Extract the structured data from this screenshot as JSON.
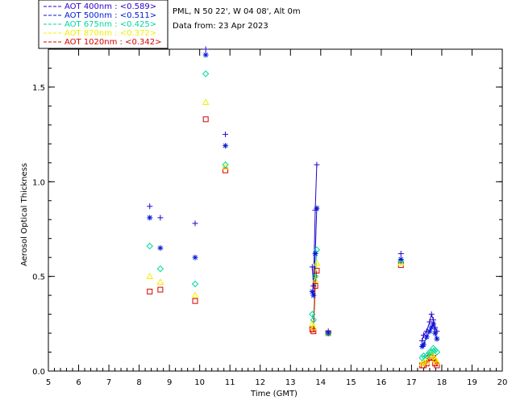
{
  "header": {
    "site": "PML, N 50 22', W 04 08', Alt 0m",
    "date_line": "Data from: 23 Apr 2023"
  },
  "chart_data": {
    "type": "scatter",
    "xlabel": "Time (GMT)",
    "ylabel": "Aerosol Optical Thickness",
    "xlim": [
      5,
      20
    ],
    "ylim": [
      0.0,
      1.7
    ],
    "xticks": [
      "5",
      "6",
      "7",
      "8",
      "9",
      "10",
      "11",
      "12",
      "13",
      "14",
      "15",
      "16",
      "17",
      "18",
      "19",
      "20"
    ],
    "yticks": [
      {
        "value": 0.0,
        "label": "0.0"
      },
      {
        "value": 0.5,
        "label": "0.5"
      },
      {
        "value": 1.0,
        "label": "1.0"
      },
      {
        "value": 1.5,
        "label": "1.5"
      }
    ],
    "x": [
      8.35,
      8.7,
      9.85,
      10.2,
      10.85,
      13.72,
      13.76,
      13.82,
      13.87,
      14.25,
      16.65,
      17.35,
      17.4,
      17.5,
      17.6,
      17.66,
      17.72,
      17.78,
      17.84
    ],
    "series": [
      {
        "name": "AOT  400nm : <0.589>",
        "color": "#2a00c8",
        "marker": "plus",
        "values": [
          0.87,
          0.81,
          0.78,
          1.7,
          1.25,
          0.55,
          0.45,
          0.85,
          1.09,
          0.21,
          0.62,
          0.16,
          0.19,
          0.21,
          0.26,
          0.3,
          0.27,
          0.23,
          0.21
        ]
      },
      {
        "name": "AOT  500nm : <0.511>",
        "color": "#0018d8",
        "marker": "asterisk",
        "values": [
          0.81,
          0.65,
          0.6,
          1.67,
          1.19,
          0.42,
          0.4,
          0.62,
          0.86,
          0.2,
          0.59,
          0.13,
          0.14,
          0.18,
          0.21,
          0.23,
          0.25,
          0.2,
          0.17
        ]
      },
      {
        "name": "AOT  675nm : <0.425>",
        "color": "#00d8a0",
        "marker": "diamond",
        "values": [
          0.66,
          0.54,
          0.46,
          1.57,
          1.09,
          0.3,
          0.27,
          0.5,
          0.64,
          0.2,
          0.58,
          0.07,
          0.08,
          0.08,
          0.1,
          0.1,
          0.12,
          0.11,
          0.1
        ]
      },
      {
        "name": "AOT  870nm : <0.372>",
        "color": "#f0f000",
        "marker": "triangle",
        "values": [
          0.5,
          0.47,
          0.4,
          1.42,
          1.08,
          0.25,
          0.23,
          0.48,
          0.57,
          0.2,
          0.57,
          0.04,
          0.05,
          0.05,
          0.08,
          0.09,
          0.08,
          0.06,
          0.05
        ]
      },
      {
        "name": "AOT 1020nm : <0.342>",
        "color": "#d80000",
        "marker": "square",
        "values": [
          0.42,
          0.43,
          0.37,
          1.33,
          1.06,
          0.22,
          0.21,
          0.45,
          0.53,
          0.2,
          0.56,
          0.03,
          0.03,
          0.04,
          0.07,
          0.07,
          0.07,
          0.04,
          0.03
        ]
      }
    ]
  }
}
